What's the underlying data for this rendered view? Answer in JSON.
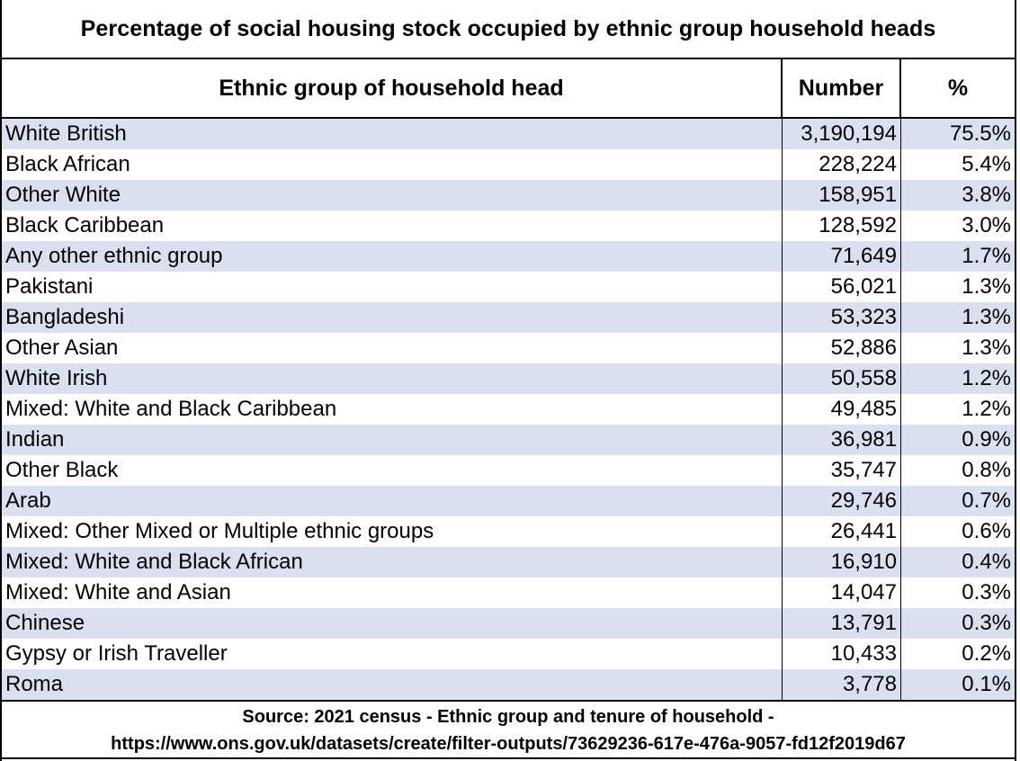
{
  "title": "Percentage of social housing stock occupied by ethnic group household heads",
  "headers": {
    "group": "Ethnic group of household head",
    "number": "Number",
    "percent": "%"
  },
  "rows": [
    {
      "group": "White British",
      "number": "3,190,194",
      "percent": "75.5%"
    },
    {
      "group": "Black African",
      "number": "228,224",
      "percent": "5.4%"
    },
    {
      "group": "Other White",
      "number": "158,951",
      "percent": "3.8%"
    },
    {
      "group": "Black Caribbean",
      "number": "128,592",
      "percent": "3.0%"
    },
    {
      "group": "Any other ethnic group",
      "number": "71,649",
      "percent": "1.7%"
    },
    {
      "group": "Pakistani",
      "number": "56,021",
      "percent": "1.3%"
    },
    {
      "group": "Bangladeshi",
      "number": "53,323",
      "percent": "1.3%"
    },
    {
      "group": "Other Asian",
      "number": "52,886",
      "percent": "1.3%"
    },
    {
      "group": "White Irish",
      "number": "50,558",
      "percent": "1.2%"
    },
    {
      "group": "Mixed: White and Black Caribbean",
      "number": "49,485",
      "percent": "1.2%"
    },
    {
      "group": "Indian",
      "number": "36,981",
      "percent": "0.9%"
    },
    {
      "group": "Other Black",
      "number": "35,747",
      "percent": "0.8%"
    },
    {
      "group": "Arab",
      "number": "29,746",
      "percent": "0.7%"
    },
    {
      "group": "Mixed: Other Mixed or Multiple ethnic groups",
      "number": "26,441",
      "percent": "0.6%"
    },
    {
      "group": "Mixed: White and Black African",
      "number": "16,910",
      "percent": "0.4%"
    },
    {
      "group": "Mixed: White and Asian",
      "number": "14,047",
      "percent": "0.3%"
    },
    {
      "group": "Chinese",
      "number": "13,791",
      "percent": "0.3%"
    },
    {
      "group": "Gypsy or Irish Traveller",
      "number": "10,433",
      "percent": "0.2%"
    },
    {
      "group": "Roma",
      "number": "3,778",
      "percent": "0.1%"
    }
  ],
  "footer": {
    "line1": "Source: 2021 census - Ethnic group and tenure of household -",
    "line2": "https://www.ons.gov.uk/datasets/create/filter-outputs/73629236-617e-476a-9057-fd12f2019d67"
  },
  "colors": {
    "row_alt_fill": "#dae0f0",
    "border": "#000000"
  }
}
